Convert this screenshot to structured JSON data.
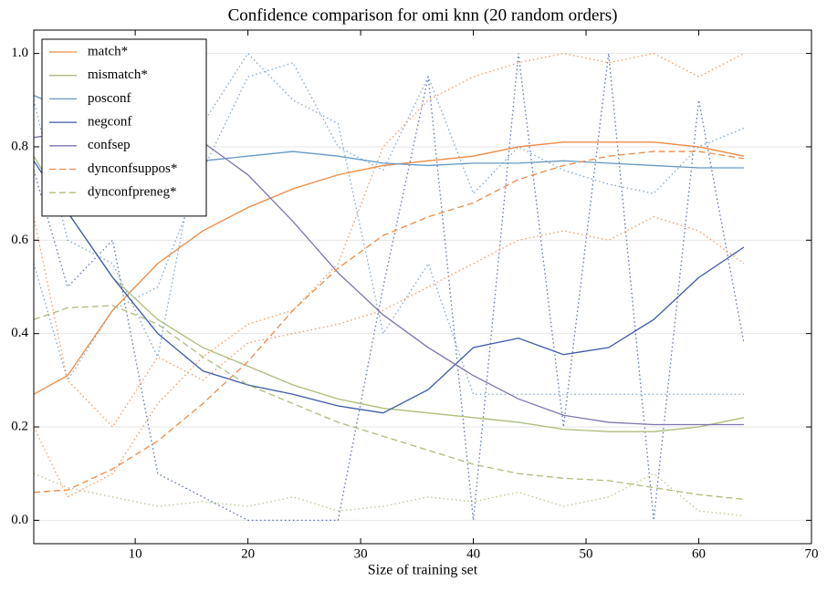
{
  "chart_data": {
    "type": "line",
    "title": "Confidence comparison for omi knn (20 random orders)",
    "x_label": "Size of training set",
    "x": [
      1,
      4,
      8,
      12,
      16,
      20,
      24,
      28,
      32,
      36,
      40,
      44,
      48,
      52,
      56,
      60,
      64
    ],
    "xlim": [
      1,
      70
    ],
    "xticks": [
      10,
      20,
      30,
      40,
      50,
      60,
      70
    ],
    "ylim": [
      -0.05,
      1.05
    ],
    "yticks": [
      {
        "value": 0,
        "label": "0.0"
      },
      {
        "value": 0.2,
        "label": "0.2"
      },
      {
        "value": 0.4,
        "label": "0.4"
      },
      {
        "value": 0.6,
        "label": "0.6"
      },
      {
        "value": 0.8,
        "label": "0.8"
      },
      {
        "value": 1,
        "label": "1.0"
      }
    ],
    "grid": true,
    "legend": "upper left",
    "series": [
      {
        "name": "match*",
        "color": "#ee8a43",
        "dash": "solid",
        "values": [
          0.27,
          0.31,
          0.45,
          0.55,
          0.62,
          0.67,
          0.71,
          0.74,
          0.76,
          0.77,
          0.78,
          0.8,
          0.81,
          0.81,
          0.81,
          0.8,
          0.78
        ]
      },
      {
        "name": "mismatch*",
        "color": "#acbd7a",
        "dash": "solid",
        "values": [
          0.78,
          0.66,
          0.52,
          0.43,
          0.37,
          0.33,
          0.29,
          0.26,
          0.24,
          0.23,
          0.22,
          0.21,
          0.195,
          0.19,
          0.19,
          0.2,
          0.22
        ]
      },
      {
        "name": "posconf",
        "color": "#6598c6",
        "dash": "solid",
        "values": [
          0.91,
          0.88,
          0.83,
          0.79,
          0.77,
          0.78,
          0.79,
          0.78,
          0.765,
          0.76,
          0.765,
          0.765,
          0.77,
          0.765,
          0.76,
          0.755,
          0.755
        ]
      },
      {
        "name": "negconf",
        "color": "#3c59a8",
        "dash": "solid",
        "values": [
          0.77,
          0.66,
          0.52,
          0.4,
          0.32,
          0.29,
          0.27,
          0.245,
          0.23,
          0.28,
          0.37,
          0.39,
          0.355,
          0.37,
          0.43,
          0.52,
          0.585
        ]
      },
      {
        "name": "confsep",
        "color": "#7f73b0",
        "dash": "solid",
        "values": [
          0.82,
          0.83,
          0.83,
          0.83,
          0.81,
          0.74,
          0.64,
          0.53,
          0.44,
          0.37,
          0.31,
          0.26,
          0.225,
          0.21,
          0.205,
          0.205,
          0.205
        ]
      },
      {
        "name": "dynconfsuppos*",
        "color": "#ee8a43",
        "dash": "dashed",
        "values": [
          0.06,
          0.065,
          0.11,
          0.17,
          0.25,
          0.34,
          0.45,
          0.54,
          0.61,
          0.65,
          0.68,
          0.73,
          0.76,
          0.78,
          0.79,
          0.79,
          0.775
        ]
      },
      {
        "name": "dynconfpreneg*",
        "color": "#acbd7a",
        "dash": "dashed",
        "values": [
          0.43,
          0.455,
          0.46,
          0.42,
          0.35,
          0.29,
          0.25,
          0.21,
          0.18,
          0.15,
          0.12,
          0.1,
          0.09,
          0.085,
          0.07,
          0.055,
          0.045
        ]
      },
      {
        "color": "#3c59a8",
        "dash": "dotted",
        "values": [
          0.75,
          0.5,
          0.6,
          0.1,
          0.05,
          0.0,
          0.0,
          0.0,
          0.5,
          0.95,
          0.0,
          1.0,
          0.2,
          1.0,
          0.0,
          0.9,
          0.38
        ]
      },
      {
        "color": "#6598c6",
        "dash": "dotted",
        "values": [
          0.9,
          0.6,
          0.55,
          0.35,
          0.85,
          1.0,
          0.9,
          0.85,
          0.4,
          0.55,
          0.27,
          0.27,
          0.27,
          0.27,
          0.27,
          0.27,
          0.27
        ]
      },
      {
        "color": "#6598c6",
        "dash": "dotted",
        "values": [
          0.55,
          0.3,
          0.45,
          0.5,
          0.75,
          0.95,
          0.98,
          0.8,
          0.75,
          0.95,
          0.7,
          0.8,
          0.75,
          0.72,
          0.7,
          0.8,
          0.84
        ]
      },
      {
        "color": "#ee8a43",
        "dash": "dotted",
        "values": [
          0.2,
          0.05,
          0.1,
          0.25,
          0.35,
          0.42,
          0.45,
          0.55,
          0.8,
          0.9,
          0.95,
          0.98,
          1.0,
          0.98,
          1.0,
          0.95,
          1.0
        ]
      },
      {
        "color": "#ee8a43",
        "dash": "dotted",
        "values": [
          0.65,
          0.3,
          0.2,
          0.35,
          0.3,
          0.38,
          0.4,
          0.42,
          0.45,
          0.5,
          0.55,
          0.6,
          0.62,
          0.6,
          0.65,
          0.62,
          0.55
        ]
      },
      {
        "color": "#acbd7a",
        "dash": "dotted",
        "values": [
          0.1,
          0.07,
          0.05,
          0.03,
          0.04,
          0.03,
          0.05,
          0.02,
          0.03,
          0.05,
          0.04,
          0.06,
          0.03,
          0.05,
          0.1,
          0.02,
          0.01
        ]
      }
    ]
  }
}
